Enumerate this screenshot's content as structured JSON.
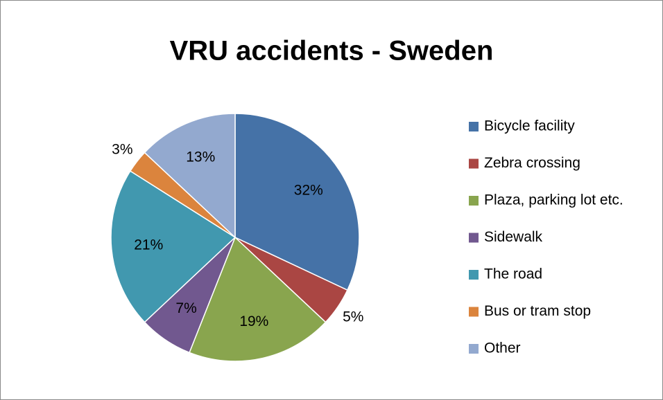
{
  "chart_data": {
    "type": "pie",
    "title": "VRU accidents - Sweden",
    "categories": [
      "Bicycle facility",
      "Zebra crossing",
      "Plaza, parking lot etc.",
      "Sidewalk",
      "The road",
      "Bus or tram stop",
      "Other"
    ],
    "values": [
      32,
      5,
      19,
      7,
      21,
      3,
      13
    ],
    "value_labels": [
      "32%",
      "5%",
      "19%",
      "7%",
      "21%",
      "3%",
      "13%"
    ],
    "colors": [
      "#4572a7",
      "#aa4643",
      "#89a54e",
      "#71588f",
      "#4198af",
      "#db843d",
      "#93a9cf"
    ],
    "legend": "right"
  }
}
